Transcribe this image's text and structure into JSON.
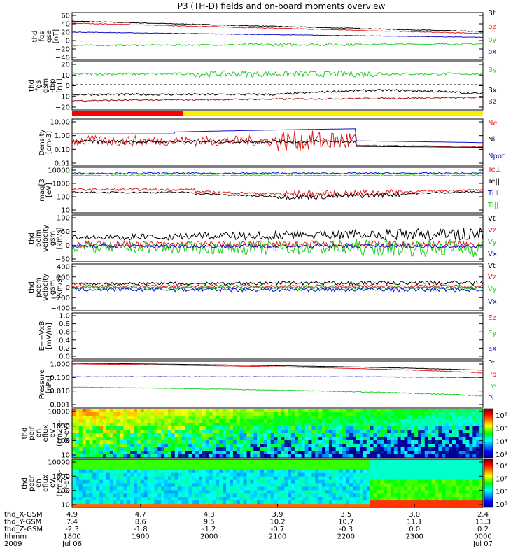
{
  "title": "P3 (TH-D) fields and on-board moments overview",
  "colors": {
    "black": "#000000",
    "red": "#e41a1c",
    "green": "#22cc22",
    "blue": "#1010cc",
    "darkred": "#a01010",
    "yellow": "#f8f000",
    "barred": "#ff0000"
  },
  "chart_data": [
    {
      "type": "line",
      "ylabel": [
        "thd",
        "fgs",
        "gse",
        "[nT]"
      ],
      "ylim": [
        -40,
        60
      ],
      "yticks": [
        "60",
        "40",
        "20",
        "0",
        "−20",
        "−40"
      ],
      "series": [
        {
          "name": "Bt",
          "color": "black",
          "start": 42,
          "end": 20
        },
        {
          "name": "bz",
          "color": "red",
          "start": 38,
          "end": 16
        },
        {
          "name": "by",
          "color": "green",
          "start": -9,
          "end": -6
        },
        {
          "name": "bx",
          "color": "blue",
          "start": 19,
          "end": 8
        }
      ]
    },
    {
      "type": "line",
      "ylabel": [
        "thd",
        "fgs",
        "gsm",
        "-tbp",
        "[nT]"
      ],
      "ylim": [
        -25,
        22
      ],
      "yticks": [
        "20",
        "10",
        "0",
        "−10",
        "−20"
      ],
      "series": [
        {
          "name": "By",
          "color": "green",
          "start": 10,
          "end": 9
        },
        {
          "name": "Bx",
          "color": "black",
          "start": -10,
          "end": -7
        },
        {
          "name": "Bz",
          "color": "darkred",
          "start": -16,
          "end": -13
        }
      ]
    },
    {
      "type": "line",
      "scale": "log",
      "ylabel": [
        "Density",
        "[cm-3]"
      ],
      "ylim": [
        0.01,
        15
      ],
      "yticks": [
        "10.00",
        "1.00",
        "0.10",
        "0.01"
      ],
      "series": [
        {
          "name": "Ne",
          "color": "red"
        },
        {
          "name": "Ni",
          "color": "black"
        },
        {
          "name": "Npot",
          "color": "blue"
        }
      ]
    },
    {
      "type": "line",
      "scale": "log",
      "ylabel": [
        "mag[3",
        "[eV]"
      ],
      "ylim": [
        8,
        13000
      ],
      "yticks": [
        "10000",
        "1000",
        "100",
        "10"
      ],
      "series": [
        {
          "name": "Te⊥",
          "color": "red"
        },
        {
          "name": "Te||",
          "color": "black"
        },
        {
          "name": "Ti⊥",
          "color": "blue"
        },
        {
          "name": "Ti||",
          "color": "green"
        }
      ]
    },
    {
      "type": "line",
      "ylabel": [
        "thd",
        "peim",
        "velocity",
        "gsm",
        "[km/s]"
      ],
      "ylim": [
        -50,
        100
      ],
      "yticks": [
        "100",
        "50",
        "0",
        "−50"
      ],
      "series": [
        {
          "name": "Vt",
          "color": "black"
        },
        {
          "name": "Vz",
          "color": "red"
        },
        {
          "name": "Vy",
          "color": "green"
        },
        {
          "name": "Vx",
          "color": "blue"
        }
      ]
    },
    {
      "type": "line",
      "ylabel": [
        "thd",
        "peem",
        "velocity",
        "gsm",
        "[km/s]"
      ],
      "ylim": [
        -400,
        400
      ],
      "yticks": [
        "400",
        "200",
        "0",
        "−200",
        "−400"
      ],
      "series": [
        {
          "name": "Vt",
          "color": "black"
        },
        {
          "name": "Vz",
          "color": "red"
        },
        {
          "name": "Vy",
          "color": "green"
        },
        {
          "name": "Vx",
          "color": "blue"
        }
      ]
    },
    {
      "type": "line",
      "ylabel": [
        "E=−VxB",
        "[mV/m]"
      ],
      "ylim": [
        0,
        1
      ],
      "yticks": [
        "1.0",
        "0.8",
        "0.6",
        "0.4",
        "0.2",
        "0.0"
      ],
      "series": [
        {
          "name": "Ez",
          "color": "red"
        },
        {
          "name": "Ey",
          "color": "green"
        },
        {
          "name": "Ex",
          "color": "blue"
        }
      ]
    },
    {
      "type": "line",
      "scale": "log",
      "ylabel": [
        "Pressure",
        "[nPa]"
      ],
      "ylim": [
        0.001,
        1.2
      ],
      "yticks": [
        "1.000",
        "0.100",
        "0.010",
        "0.001"
      ],
      "series": [
        {
          "name": "Pt",
          "color": "black"
        },
        {
          "name": "Pb",
          "color": "red"
        },
        {
          "name": "Pe",
          "color": "green"
        },
        {
          "name": "Pi",
          "color": "blue"
        }
      ]
    },
    {
      "type": "heatmap",
      "ylabel": [
        "thd",
        "peir",
        "en",
        "eflux",
        "eV",
        "(cm2-s-",
        "sr-eV)"
      ],
      "yticks": [
        "10000",
        "1000",
        "100",
        "10"
      ],
      "colorbar_ticks": [
        "10⁶",
        "10⁵",
        "10⁴",
        "10³"
      ]
    },
    {
      "type": "heatmap",
      "ylabel": [
        "thd",
        "peer",
        "en",
        "eflux",
        "eV",
        "(cm2-s-",
        "sr-eV)"
      ],
      "yticks": [
        "10000",
        "1000",
        "100",
        "10"
      ],
      "colorbar_ticks": [
        "10⁸",
        "10⁷",
        "10⁶",
        "10⁵"
      ]
    }
  ],
  "time_bar": {
    "red_until_fraction": 0.27
  },
  "xaxis": {
    "row_labels": [
      "thd_X-GSM",
      "thd_Y-GSM",
      "thd_Z-GSM",
      "hhmm",
      "2009"
    ],
    "ticks": [
      {
        "x": "4.9",
        "y": "7.4",
        "z": "-2.3",
        "hhmm": "1800",
        "date": "Jul 06"
      },
      {
        "x": "4.7",
        "y": "8.6",
        "z": "-1.8",
        "hhmm": "1900",
        "date": ""
      },
      {
        "x": "4.3",
        "y": "9.5",
        "z": "-1.2",
        "hhmm": "2000",
        "date": ""
      },
      {
        "x": "3.9",
        "y": "10.2",
        "z": "-0.7",
        "hhmm": "2100",
        "date": ""
      },
      {
        "x": "3.5",
        "y": "10.7",
        "z": "-0.3",
        "hhmm": "2200",
        "date": ""
      },
      {
        "x": "3.0",
        "y": "11.1",
        "z": "0.0",
        "hhmm": "2300",
        "date": ""
      },
      {
        "x": "2.4",
        "y": "11.3",
        "z": "0.2",
        "hhmm": "0000",
        "date": "Jul 07"
      }
    ]
  }
}
